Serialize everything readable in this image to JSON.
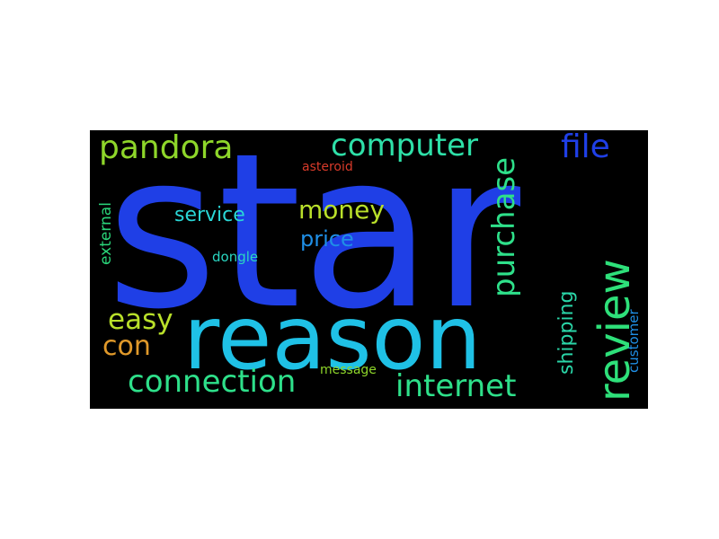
{
  "wordcloud": {
    "words": [
      {
        "key": "star",
        "text": "star",
        "color": "#1f3fe6"
      },
      {
        "key": "reason",
        "text": "reason",
        "color": "#1fc1e6"
      },
      {
        "key": "pandora",
        "text": "pandora",
        "color": "#8ed62a"
      },
      {
        "key": "computer",
        "text": "computer",
        "color": "#2ee0a8"
      },
      {
        "key": "file",
        "text": "file",
        "color": "#1f3fe6"
      },
      {
        "key": "asteroid",
        "text": "asteroid",
        "color": "#d83a2a"
      },
      {
        "key": "money",
        "text": "money",
        "color": "#b9e02a"
      },
      {
        "key": "service",
        "text": "service",
        "color": "#2ad6d6"
      },
      {
        "key": "price",
        "text": "price",
        "color": "#1f8fe6"
      },
      {
        "key": "external",
        "text": "external",
        "color": "#2ad67a"
      },
      {
        "key": "dongle",
        "text": "dongle",
        "color": "#2ad6c1"
      },
      {
        "key": "purchase",
        "text": "purchase",
        "color": "#2ee08a"
      },
      {
        "key": "review",
        "text": "review",
        "color": "#2ee07a"
      },
      {
        "key": "easy",
        "text": "easy",
        "color": "#b9e02a"
      },
      {
        "key": "con",
        "text": "con",
        "color": "#e0992a"
      },
      {
        "key": "shipping",
        "text": "shipping",
        "color": "#2ad6a8"
      },
      {
        "key": "customer",
        "text": "customer",
        "color": "#1f8fe6"
      },
      {
        "key": "connection",
        "text": "connection",
        "color": "#2ee08a"
      },
      {
        "key": "message",
        "text": "message",
        "color": "#8ed62a"
      },
      {
        "key": "internet",
        "text": "internet",
        "color": "#2ee08a"
      }
    ]
  }
}
